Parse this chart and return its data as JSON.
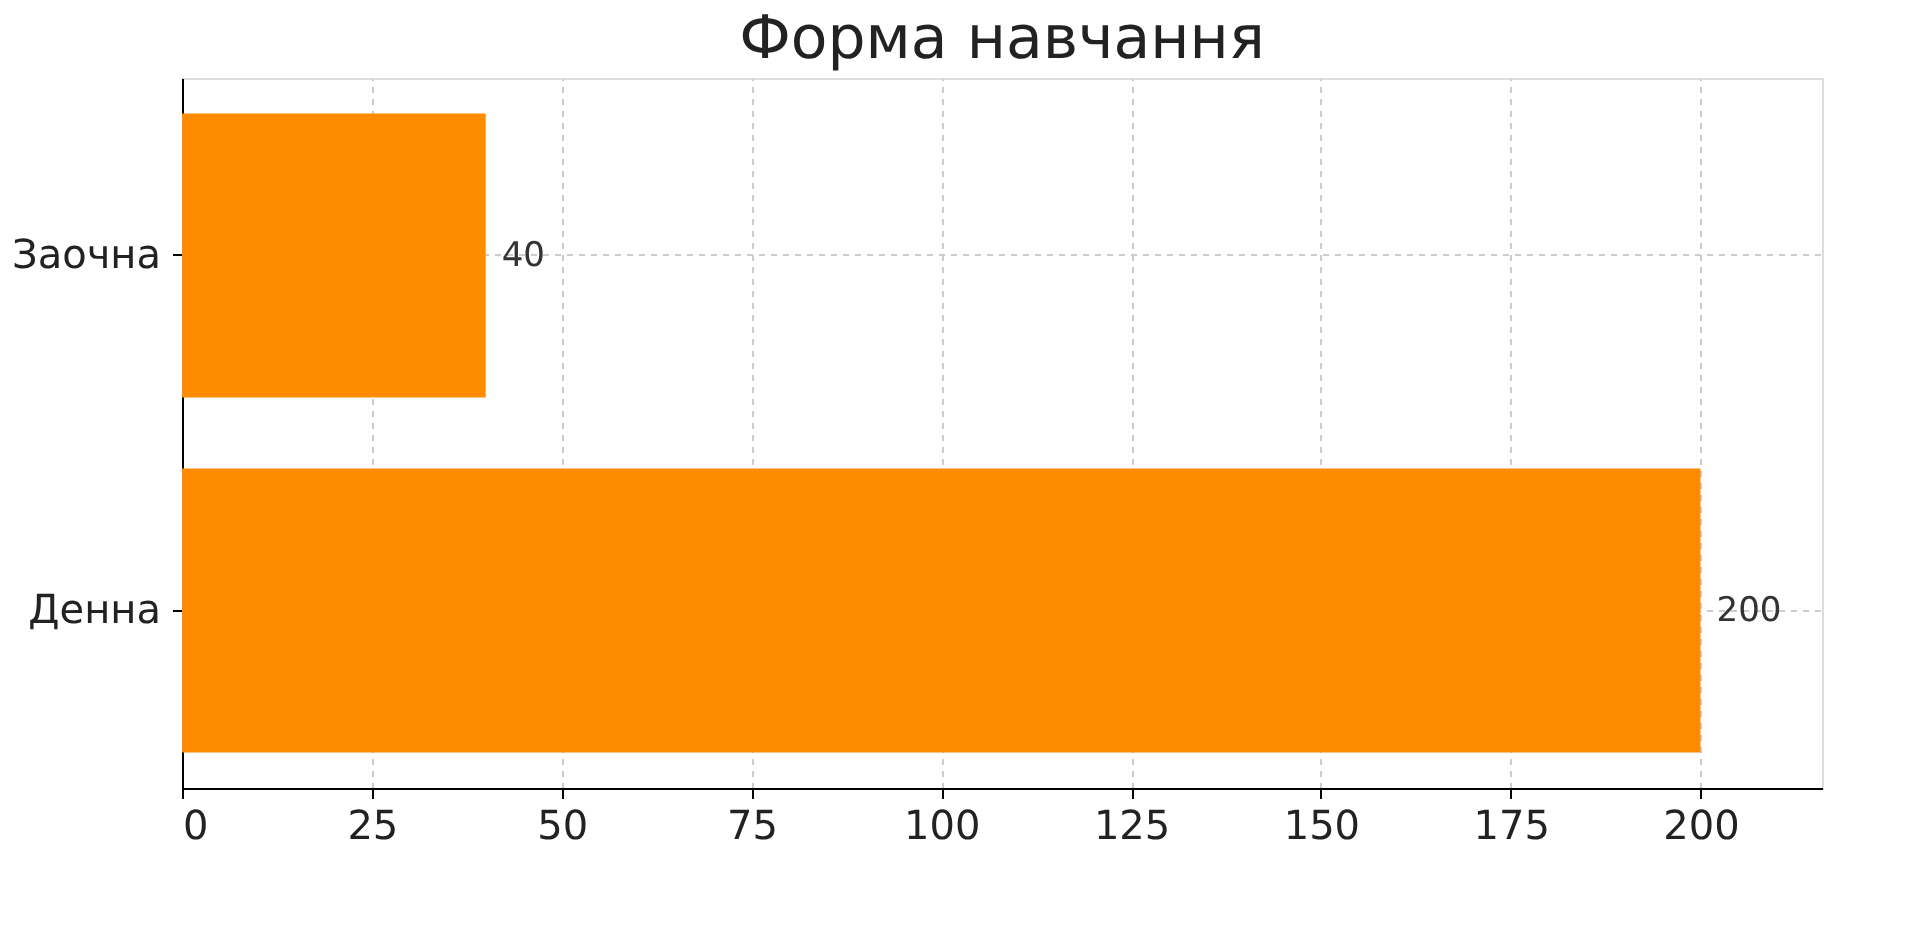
{
  "chart_data": {
    "type": "bar",
    "orientation": "horizontal",
    "title": "Форма навчання",
    "categories": [
      "Заочна",
      "Денна"
    ],
    "values": [
      40,
      200
    ],
    "color": "#ff8c00",
    "xlim": [
      0,
      216
    ],
    "xticks": [
      0,
      25,
      50,
      75,
      100,
      125,
      150,
      175,
      200
    ],
    "grid": true,
    "data_labels": true
  }
}
